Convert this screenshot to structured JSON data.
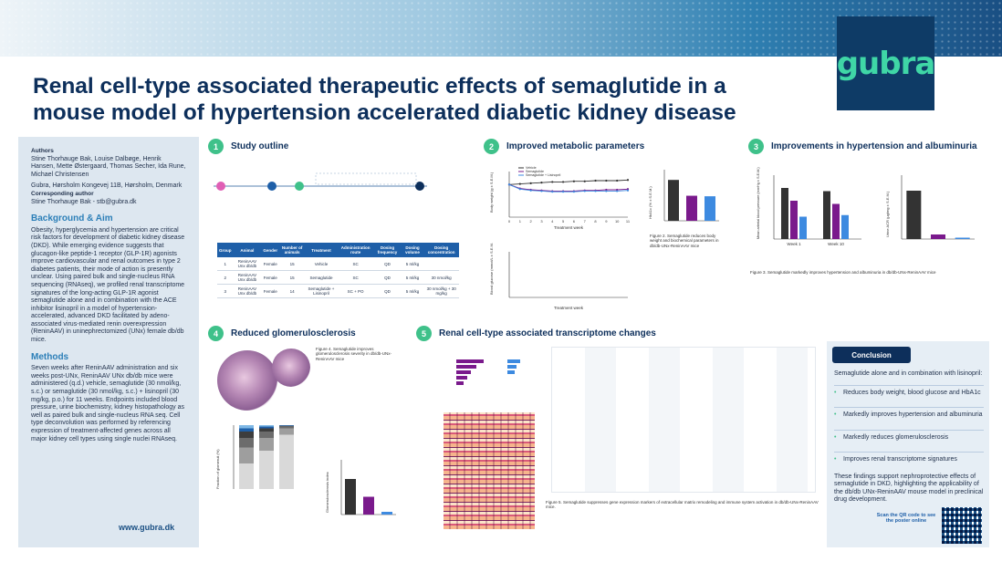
{
  "header": {
    "title_line1": "Renal cell-type associated therapeutic effects of semaglutide in a",
    "title_line2": "mouse model of hypertension accelerated diabetic kidney disease",
    "logo": "gubra"
  },
  "left": {
    "authors_head": "Authors",
    "authors": "Stine Thorhauge Bak, Louise Dalbøge, Henrik Hansen, Mette Østergaard, Thomas Secher, Ida Rune, Michael Christensen",
    "affiliation": "Gubra, Hørsholm Kongevej 11B, Hørsholm, Denmark",
    "corr_head": "Corresponding author",
    "corr": "Stine Thorhauge Bak - stb@gubra.dk",
    "bg_head": "Background & Aim",
    "bg": "Obesity, hyperglycemia and hypertension are critical risk factors for development of diabetic kidney disease (DKD). While emerging evidence suggests that glucagon-like peptide-1 receptor (GLP-1R) agonists improve cardiovascular and renal outcomes in type 2 diabetes patients, their mode of action is presently unclear. Using paired bulk and single-nucleus RNA sequencing (RNAseq), we profiled renal transcriptome signatures of the long-acting GLP-1R agonist semaglutide alone and in combination with the ACE inhibitor lisinopril in a model of hypertension-accelerated, advanced DKD facilitated by adeno-associated virus-mediated renin overexpression (ReninAAV) in uninephrectomized (UNx) female db/db mice.",
    "methods_head": "Methods",
    "methods": "Seven weeks after ReninAAV administration and six weeks post-UNx, ReninAAV UNx db/db mice were administered (q.d.) vehicle, semaglutide (30 nmol/kg, s.c.) or semaglutide (30 nmol/kg, s.c.) + lisinopril (30 mg/kg, p.o.) for 11 weeks. Endpoints included blood pressure, urine biochemistry, kidney histopathology as well as paired bulk and single-nucleus RNA seq. Cell type deconvolution was performed by referencing expression of treatment-affected genes across all major kidney cell types using single nuclei RNAseq.",
    "url": "www.gubra.dk"
  },
  "sections": {
    "s1": {
      "num": "1",
      "title": "Study outline"
    },
    "s2": {
      "num": "2",
      "title": "Improved metabolic parameters"
    },
    "s3": {
      "num": "3",
      "title": "Improvements in hypertension and albuminuria"
    },
    "s4": {
      "num": "4",
      "title": "Reduced glomerulosclerosis"
    },
    "s5": {
      "num": "5",
      "title": "Renal cell-type associated transcriptome changes"
    }
  },
  "study_table": {
    "headers": [
      "Group",
      "Animal",
      "Gender",
      "Number of animals",
      "Treatment",
      "Administration route",
      "Dosing frequency",
      "Dosing volume",
      "Dosing concentration"
    ],
    "rows": [
      [
        "1",
        "ReninAAV Unx db/db",
        "Female",
        "15",
        "Vehicle",
        "SC",
        "QD",
        "5 ml/kg",
        ""
      ],
      [
        "2",
        "ReninAAV Unx db/db",
        "Female",
        "15",
        "Semaglutide",
        "SC",
        "QD",
        "5 ml/kg",
        "30 nmol/kg"
      ],
      [
        "3",
        "ReninAAV Unx db/db",
        "Female",
        "14",
        "Semaglutide + Lisinopril",
        "SC + PO",
        "QD",
        "5 ml/kg",
        "30 nmol/kg + 30 mg/kg"
      ]
    ]
  },
  "legend": {
    "vehicle": "Vehicle",
    "sema": "Semaglutide",
    "combo": "Semaglutide + Lisinopril"
  },
  "colors": {
    "vehicle": "#333333",
    "sema": "#7a1a8c",
    "combo": "#3d8ae0",
    "accent": "#3fc18a",
    "navy": "#0d2f5b"
  },
  "captions": {
    "fig2": "Figure 2. Semaglutide reduces body weight and biochemical parameters in db/db-UNx-ReninAAV mice",
    "fig3": "Figure 3. Semaglutide markedly improves hypertension and albuminuria in db/db-UNx-ReninAAV mice",
    "fig4": "Figure 4. Semaglutide improves glomerulosclerosis severity in db/db-UNx-ReninAAV mice",
    "fig5": "Figure 5. Semaglutide suppresses gene expression markers of extracellular matrix remodeling and immune system activation in db/db-UNx-ReninAAV mice."
  },
  "axes": {
    "bw_y": "Body weight (g ± S.E.M.)",
    "bw_x": "Treatment week",
    "bg_y": "Blood glucose (mmol/L ± S.E.M.)",
    "bg_x": "Treatment week",
    "hba1c_y": "HbA1c (% ± S.E.M.)",
    "bp_y": "Mean arterial blood pressure (mmHg ± S.E.M.)",
    "uacr_y": "Urine ACR (µg/mg ± S.E.M.)",
    "week1": "Week 1",
    "week10": "Week 10",
    "frac_y": "Fraction of glomeruli (%)",
    "gs_y": "Glomerulosclerosis index"
  },
  "chart_data": [
    {
      "type": "line",
      "title": "Body weight",
      "xlabel": "Treatment week",
      "ylabel": "Body weight (g ± S.E.M.)",
      "x": [
        0,
        1,
        2,
        3,
        4,
        5,
        6,
        7,
        8,
        9,
        10,
        11
      ],
      "ylim": [
        0,
        70
      ],
      "series": [
        {
          "name": "Vehicle",
          "values": [
            50,
            51,
            52,
            53,
            54,
            54,
            55,
            55,
            56,
            56,
            56,
            57
          ]
        },
        {
          "name": "Semaglutide",
          "values": [
            50,
            44,
            42,
            41,
            40,
            40,
            40,
            41,
            41,
            42,
            42,
            43
          ]
        },
        {
          "name": "Semaglutide + Lisinopril",
          "values": [
            50,
            43,
            41,
            40,
            39,
            39,
            39,
            40,
            40,
            40,
            40,
            41
          ]
        }
      ]
    },
    {
      "type": "bar",
      "title": "HbA1c",
      "ylabel": "HbA1c (% ± S.E.M.)",
      "categories": [
        "Vehicle",
        "Semaglutide",
        "Semaglutide + Lisinopril"
      ],
      "values": [
        8.0,
        4.9,
        4.8
      ],
      "ylim": [
        0,
        10
      ]
    },
    {
      "type": "bar",
      "title": "Mean arterial blood pressure",
      "categories": [
        "Week 1",
        "Week 10"
      ],
      "series": [
        {
          "name": "Vehicle",
          "values": [
            160,
            150
          ]
        },
        {
          "name": "Semaglutide",
          "values": [
            120,
            110
          ]
        },
        {
          "name": "Semaglutide + Lisinopril",
          "values": [
            70,
            75
          ]
        }
      ],
      "ylim": [
        0,
        200
      ]
    },
    {
      "type": "bar",
      "title": "Urine ACR",
      "categories": [
        "Vehicle",
        "Semaglutide",
        "Semaglutide + Lisinopril"
      ],
      "values": [
        53000,
        5000,
        1500
      ],
      "ylim": [
        0,
        70000
      ]
    },
    {
      "type": "bar",
      "title": "Glomerulosclerosis index",
      "categories": [
        "Vehicle",
        "Semaglutide",
        "Semaglutide + Lisinopril"
      ],
      "values": [
        2.6,
        1.3,
        0.2
      ],
      "ylim": [
        0,
        4
      ]
    }
  ],
  "conclusion": {
    "title": "Conclusion",
    "intro": "Semaglutide alone and in combination with lisinopril:",
    "items": [
      "Reduces body weight, blood glucose and HbA1c",
      "Markedly improves hypertension and albuminuria",
      "Markedly reduces glomerulosclerosis",
      "Improves renal transcriptome signatures"
    ],
    "outro": "These findings support nephroprotective effects of semaglutide in DKD, highlighting the applicability of the db/db UNx-ReninAAV mouse model in preclinical drug development.",
    "qr_text": "Scan the QR code to see the poster online"
  }
}
